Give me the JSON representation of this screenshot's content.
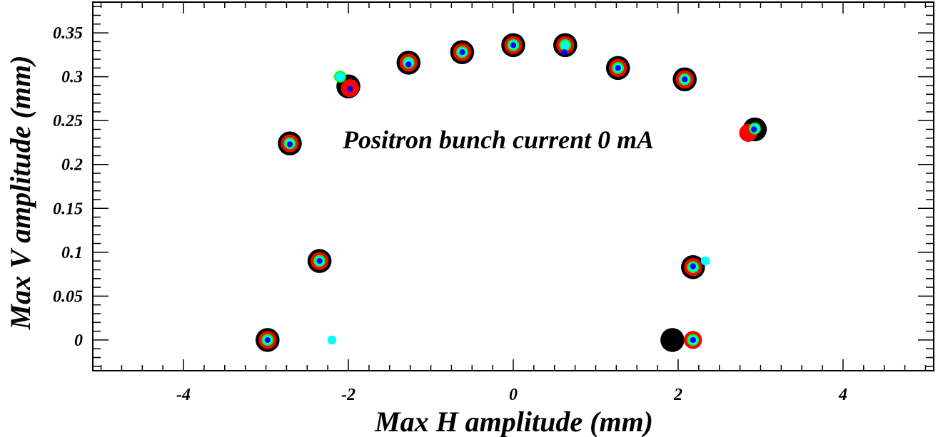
{
  "chart_data": {
    "type": "scatter",
    "xlabel": "Max H amplitude (mm)",
    "ylabel": "Max V amplitude (mm)",
    "annotation": "Positron bunch current  0 mA",
    "xlim": [
      -5.1,
      5.1
    ],
    "ylim": [
      -0.035,
      0.385
    ],
    "xticks": [
      -4,
      -2,
      0,
      2,
      4
    ],
    "xtick_labels": [
      "-4",
      "-2",
      "0",
      "2",
      "4"
    ],
    "yticks": [
      0,
      0.05,
      0.1,
      0.15,
      0.2,
      0.25,
      0.3,
      0.35
    ],
    "ytick_labels": [
      "0",
      "0.05",
      "0.1",
      "0.15",
      "0.2",
      "0.25",
      "0.3",
      "0.35"
    ],
    "grid": false,
    "series": [
      {
        "color": "#000000",
        "marker_radius_rank": 4,
        "points": [
          [
            -2.98,
            0.0
          ],
          [
            -2.35,
            0.09
          ],
          [
            -2.71,
            0.224
          ],
          [
            -2.0,
            0.289
          ],
          [
            -1.27,
            0.316
          ],
          [
            -0.62,
            0.328
          ],
          [
            0.0,
            0.336
          ],
          [
            0.63,
            0.336
          ],
          [
            1.27,
            0.31
          ],
          [
            2.08,
            0.297
          ],
          [
            2.93,
            0.24
          ],
          [
            2.18,
            0.083
          ],
          [
            1.93,
            0.0
          ]
        ]
      },
      {
        "color": "#ff0000",
        "marker_radius_rank": 3,
        "points": [
          [
            -2.98,
            0.0
          ],
          [
            -2.35,
            0.09
          ],
          [
            -2.71,
            0.224
          ],
          [
            -1.98,
            0.287
          ],
          [
            -1.27,
            0.316
          ],
          [
            -0.62,
            0.328
          ],
          [
            0.0,
            0.336
          ],
          [
            0.63,
            0.336
          ],
          [
            1.27,
            0.31
          ],
          [
            2.08,
            0.297
          ],
          [
            2.85,
            0.236
          ],
          [
            2.18,
            0.083
          ],
          [
            2.18,
            0.0
          ]
        ]
      },
      {
        "color": "#00ff00",
        "marker_radius_rank": 2,
        "points": [
          [
            -2.98,
            0.0
          ],
          [
            -2.35,
            0.09
          ],
          [
            -2.71,
            0.224
          ],
          [
            -2.1,
            0.3
          ],
          [
            -1.27,
            0.316
          ],
          [
            -0.62,
            0.328
          ],
          [
            0.0,
            0.336
          ],
          [
            0.63,
            0.336
          ],
          [
            1.27,
            0.31
          ],
          [
            2.08,
            0.297
          ],
          [
            2.93,
            0.241
          ],
          [
            2.18,
            0.083
          ],
          [
            2.18,
            0.0
          ]
        ]
      },
      {
        "color": "#00ffff",
        "marker_radius_rank": 1.5,
        "points": [
          [
            -2.98,
            0.0
          ],
          [
            -2.35,
            0.09
          ],
          [
            -2.71,
            0.224
          ],
          [
            -2.1,
            0.3
          ],
          [
            -1.27,
            0.316
          ],
          [
            -0.62,
            0.328
          ],
          [
            0.0,
            0.336
          ],
          [
            0.63,
            0.336
          ],
          [
            1.27,
            0.31
          ],
          [
            2.08,
            0.297
          ],
          [
            2.93,
            0.241
          ],
          [
            2.18,
            0.083
          ],
          [
            2.18,
            0.0
          ],
          [
            2.33,
            0.09
          ],
          [
            -2.2,
            0.0
          ]
        ]
      },
      {
        "color": "#0000ff",
        "marker_radius_rank": 1,
        "points": [
          [
            -2.98,
            0.0
          ],
          [
            -2.35,
            0.09
          ],
          [
            -2.71,
            0.223
          ],
          [
            -1.98,
            0.286
          ],
          [
            -1.27,
            0.314
          ],
          [
            -0.62,
            0.328
          ],
          [
            0.0,
            0.336
          ],
          [
            0.62,
            0.328
          ],
          [
            1.27,
            0.31
          ],
          [
            2.08,
            0.297
          ],
          [
            2.92,
            0.24
          ],
          [
            2.18,
            0.084
          ],
          [
            2.18,
            0.0
          ]
        ]
      }
    ]
  }
}
